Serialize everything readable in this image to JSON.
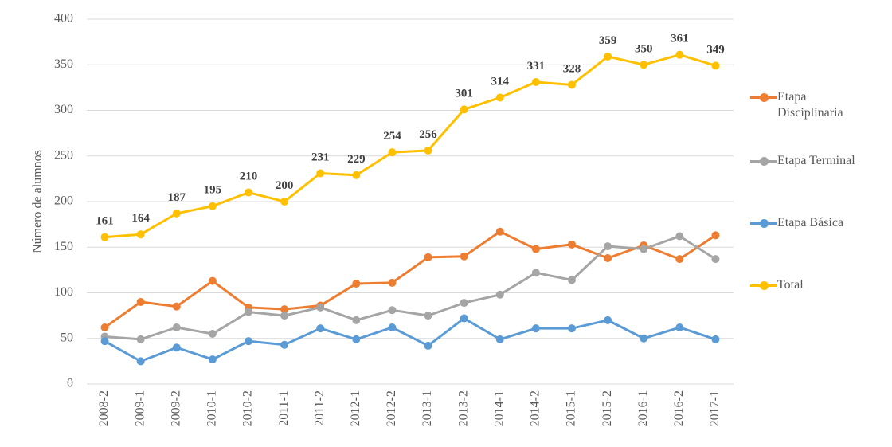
{
  "chart_data": {
    "type": "line",
    "y_label": "Número de alumnos",
    "categories": [
      "2008-2",
      "2009-1",
      "2009-2",
      "2010-1",
      "2010-2",
      "2011-1",
      "2011-2",
      "2012-1",
      "2012-2",
      "2013-1",
      "2013-2",
      "2014-1",
      "2014-2",
      "2015-1",
      "2015-2",
      "2016-1",
      "2016-2",
      "2017-1"
    ],
    "series": [
      {
        "name": "Etapa Disciplinaria",
        "color": "#ed7d31",
        "values": [
          62,
          90,
          85,
          113,
          84,
          82,
          86,
          110,
          111,
          139,
          140,
          167,
          148,
          153,
          138,
          152,
          137,
          163
        ]
      },
      {
        "name": "Etapa Terminal",
        "color": "#a5a5a5",
        "values": [
          52,
          49,
          62,
          55,
          79,
          75,
          84,
          70,
          81,
          75,
          89,
          98,
          122,
          114,
          151,
          148,
          162,
          137
        ]
      },
      {
        "name": "Etapa Básica",
        "color": "#5b9bd5",
        "values": [
          47,
          25,
          40,
          27,
          47,
          43,
          61,
          49,
          62,
          42,
          72,
          49,
          61,
          61,
          70,
          50,
          62,
          49
        ]
      },
      {
        "name": "Total",
        "color": "#ffc000",
        "values": [
          161,
          164,
          187,
          195,
          210,
          200,
          231,
          229,
          254,
          256,
          301,
          314,
          331,
          328,
          359,
          350,
          361,
          349
        ],
        "show_value_labels": true
      }
    ],
    "ylim": [
      0,
      400
    ],
    "yticks": [
      0,
      50,
      100,
      150,
      200,
      250,
      300,
      350,
      400
    ],
    "grid": true,
    "legend": "right"
  }
}
